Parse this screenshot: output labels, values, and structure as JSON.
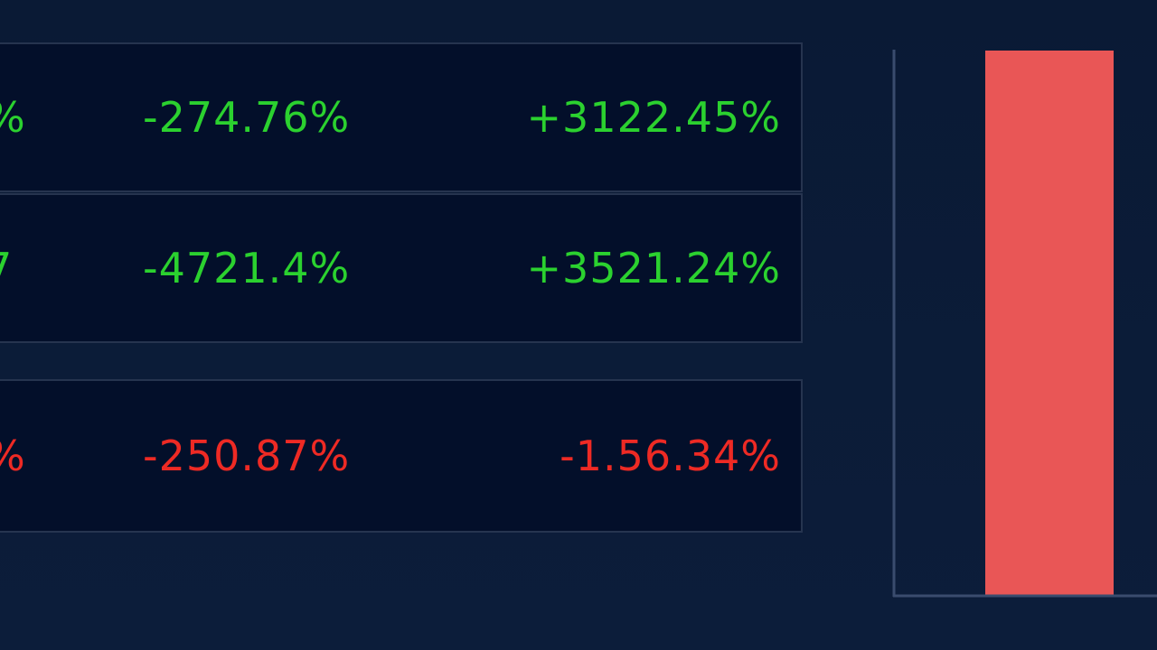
{
  "table": {
    "rows": [
      {
        "cells": [
          "%",
          "-274.76%",
          "+3122.45%"
        ],
        "color": "#2bd12f"
      },
      {
        "cells": [
          "7",
          "-4721.4%",
          "+3521.24%"
        ],
        "color": "#2bd12f"
      },
      {
        "cells": [
          "%",
          "-250.87%",
          "-1.56.34%"
        ],
        "color": "#ee2a24"
      }
    ]
  }
}
